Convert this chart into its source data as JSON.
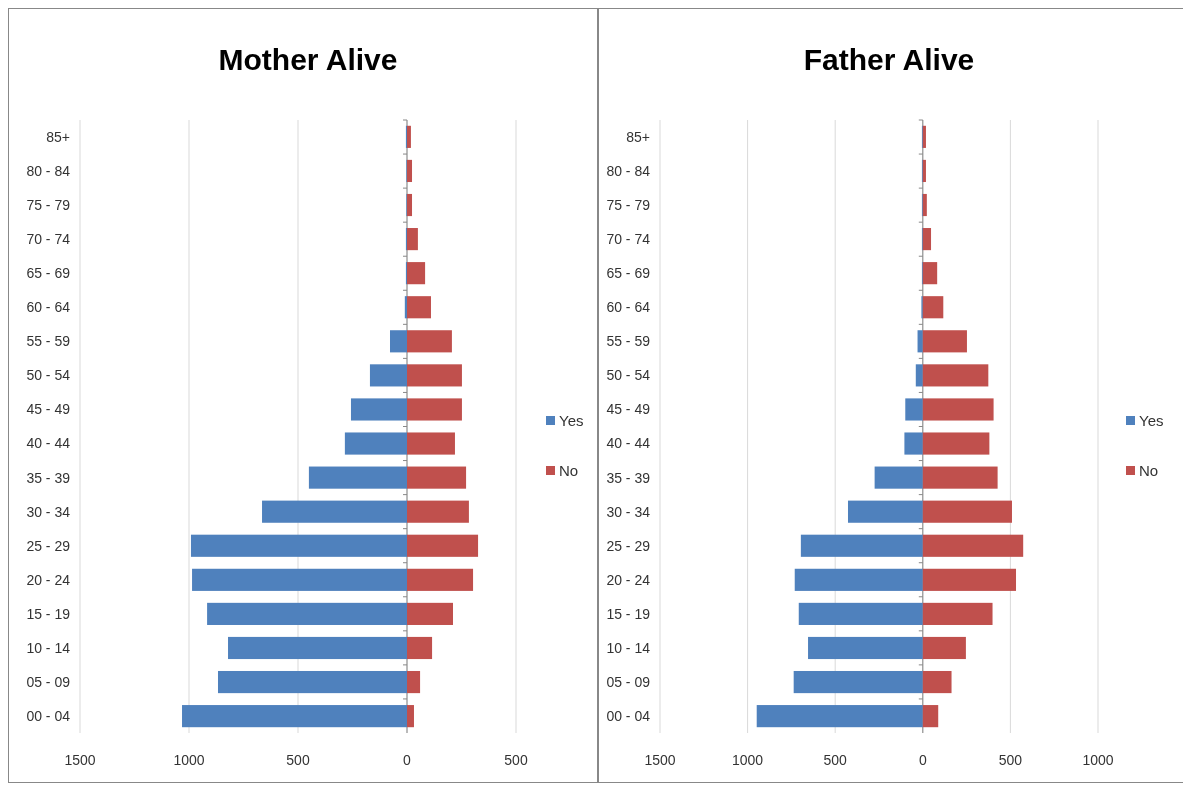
{
  "chart_data": [
    {
      "type": "bar",
      "title": "Mother Alive",
      "orientation": "horizontal",
      "stacked": true,
      "grid": "x",
      "legend": "right",
      "categories": [
        "85+",
        "80 - 84",
        "75 - 79",
        "70 - 74",
        "65 - 69",
        "60 - 64",
        "55 - 59",
        "50 - 54",
        "45 - 49",
        "40 - 44",
        "35 - 39",
        "30 - 34",
        "25 - 29",
        "20 - 24",
        "15 - 19",
        "10 - 14",
        "05 - 09",
        "00 - 04"
      ],
      "xlim": [
        -1500,
        500
      ],
      "xticks": [
        {
          "value": -1500,
          "label": "1500"
        },
        {
          "value": -1000,
          "label": "1000"
        },
        {
          "value": -500,
          "label": "500"
        },
        0,
        500
      ],
      "series": [
        {
          "name": "Yes",
          "color": "#4f81bd",
          "values": [
            -5,
            -3,
            -3,
            -5,
            -5,
            -10,
            -78,
            -170,
            -257,
            -285,
            -450,
            -665,
            -991,
            -986,
            -917,
            -821,
            -867,
            -1032
          ]
        },
        {
          "name": "No",
          "color": "#c0504d",
          "values": [
            18,
            23,
            23,
            50,
            83,
            110,
            206,
            252,
            252,
            220,
            271,
            284,
            326,
            303,
            211,
            115,
            60,
            32
          ]
        }
      ]
    },
    {
      "type": "bar",
      "title": "Father Alive",
      "orientation": "horizontal",
      "stacked": true,
      "grid": "x",
      "legend": "right",
      "categories": [
        "85+",
        "80 - 84",
        "75 - 79",
        "70 - 74",
        "65 - 69",
        "60 - 64",
        "55 - 59",
        "50 - 54",
        "45 - 49",
        "40 - 44",
        "35 - 39",
        "30 - 34",
        "25 - 29",
        "20 - 24",
        "15 - 19",
        "10 - 14",
        "05 - 09",
        "00 - 04"
      ],
      "xlim": [
        -1500,
        1000
      ],
      "xticks": [
        {
          "value": -1500,
          "label": "1500"
        },
        {
          "value": -1000,
          "label": "1000"
        },
        {
          "value": -500,
          "label": "500"
        },
        0,
        500,
        1000
      ],
      "series": [
        {
          "name": "Yes",
          "color": "#4f81bd",
          "values": [
            -5,
            -5,
            -5,
            -5,
            -5,
            -8,
            -30,
            -40,
            -100,
            -105,
            -275,
            -427,
            -696,
            -731,
            -708,
            -655,
            -737,
            -948
          ]
        },
        {
          "name": "No",
          "color": "#c0504d",
          "values": [
            18,
            18,
            23,
            47,
            82,
            117,
            252,
            374,
            404,
            380,
            427,
            509,
            573,
            532,
            398,
            246,
            164,
            88
          ]
        }
      ]
    }
  ]
}
